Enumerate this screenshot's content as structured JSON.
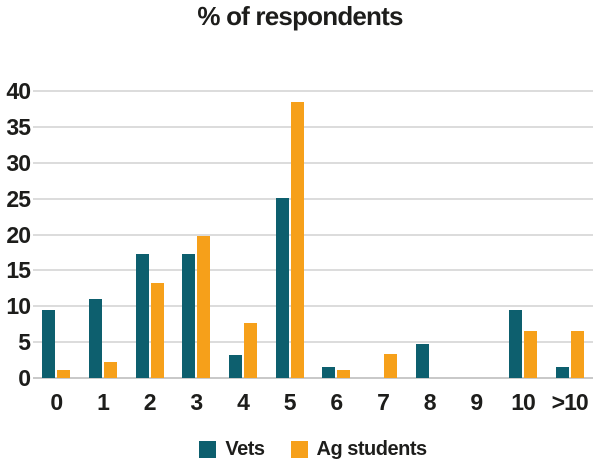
{
  "title": "% of respondents",
  "colors": {
    "vets": "#0d5f6e",
    "ag_students": "#f6a01a",
    "gridline": "#dcdcdc",
    "baseline": "#c9c9c9",
    "text": "#1d1d1b",
    "background": "#ffffff"
  },
  "chart_data": {
    "type": "bar",
    "title": "% of respondents",
    "categories": [
      "0",
      "1",
      "2",
      "3",
      "4",
      "5",
      "6",
      "7",
      "8",
      "9",
      "10",
      ">10"
    ],
    "series": [
      {
        "name": "Vets",
        "color": "#0d5f6e",
        "values": [
          9.5,
          11.0,
          17.3,
          17.3,
          3.2,
          25.1,
          1.6,
          0,
          4.7,
          0,
          9.5,
          1.6
        ]
      },
      {
        "name": "Ag students",
        "color": "#f6a01a",
        "values": [
          1.1,
          2.2,
          13.2,
          19.8,
          7.7,
          38.5,
          1.1,
          3.3,
          0,
          0,
          6.6,
          6.6
        ]
      }
    ],
    "xlabel": "",
    "ylabel": "",
    "ylim": [
      0,
      40
    ],
    "yticks": [
      0,
      5,
      10,
      15,
      20,
      25,
      30,
      35,
      40
    ],
    "grid": true,
    "legend_position": "bottom"
  }
}
